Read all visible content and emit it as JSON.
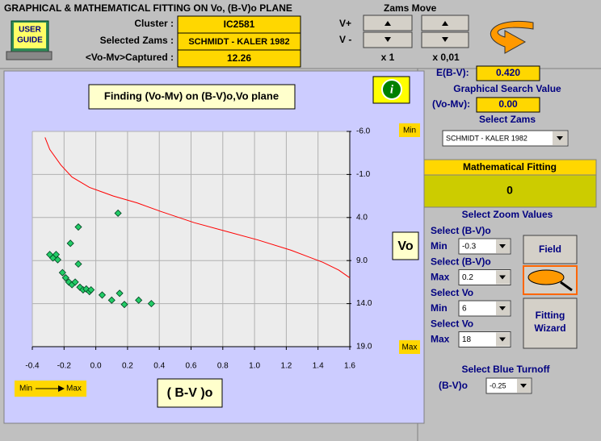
{
  "header": {
    "title": "GRAPHICAL & MATHEMATICAL FITTING ON Vo, (B-V)o PLANE",
    "user_guide": [
      "USER",
      "GUIDE"
    ]
  },
  "info_fields": [
    {
      "label": "Cluster :",
      "value": "IC2581"
    },
    {
      "label": "Selected Zams :",
      "value": "SCHMIDT - KALER 1982"
    },
    {
      "label": "<Vo-Mv>Captured :",
      "value": "12.26"
    }
  ],
  "zams_move": {
    "title": "Zams Move",
    "rows": [
      "V+",
      "V -"
    ],
    "steps": [
      "x 1",
      "x 0,01"
    ]
  },
  "chart_data": {
    "type": "scatter",
    "title": "Finding (Vo-Mv) on (B-V)o,Vo plane",
    "x_label": "( B-V )o",
    "y_label": "Vo",
    "annotations": {
      "y_top": "Min",
      "y_bottom": "Max",
      "x_min": "Min",
      "x_max": "Max"
    },
    "xlim": [
      -0.4,
      1.6
    ],
    "ylim": [
      19,
      -6
    ],
    "xticks": [
      -0.4,
      -0.2,
      {
        "value": 0,
        "label": "0.0"
      },
      0.2,
      0.4,
      0.6,
      0.8,
      {
        "value": 1,
        "label": "1.0"
      },
      1.2,
      1.4,
      1.6
    ],
    "yticks": [
      {
        "value": -6,
        "label": "-6.0"
      },
      {
        "value": -1,
        "label": "-1.0"
      },
      {
        "value": 4,
        "label": "4.0"
      },
      {
        "value": 9,
        "label": "9.0"
      },
      {
        "value": 14,
        "label": "14.0"
      },
      {
        "value": 19,
        "label": "19.0"
      }
    ],
    "grid": true,
    "series": [
      {
        "type": "line",
        "color": "#ff0000",
        "x": [
          -0.32,
          -0.29,
          -0.22,
          -0.15,
          -0.04,
          0.11,
          0.26,
          0.41,
          0.62,
          0.82,
          1.02,
          1.23,
          1.43,
          1.53,
          1.6
        ],
        "values": [
          -5.3,
          -3.9,
          -2.1,
          -0.7,
          0.5,
          1.5,
          2.3,
          3.3,
          4.6,
          5.6,
          6.6,
          7.8,
          9.2,
          10.1,
          11.0
        ]
      },
      {
        "type": "scatter",
        "color": "#22cc66",
        "x": [
          0.14,
          -0.11,
          -0.16,
          -0.29,
          -0.27,
          -0.25,
          -0.24,
          -0.11,
          -0.21,
          -0.19,
          -0.17,
          -0.15,
          -0.13,
          -0.1,
          -0.08,
          -0.06,
          -0.04,
          -0.03,
          0.04,
          0.1,
          0.15,
          0.18,
          0.27,
          0.35
        ],
        "values": [
          3.5,
          5.1,
          7.0,
          8.3,
          8.7,
          8.3,
          8.9,
          9.4,
          10.4,
          11.0,
          11.5,
          11.8,
          11.5,
          12.1,
          12.4,
          12.3,
          12.6,
          12.4,
          13.0,
          13.6,
          12.8,
          14.1,
          13.6,
          14.0
        ]
      }
    ]
  },
  "right_panel": {
    "ebv_label": "E(B-V):",
    "ebv_value": "0.420",
    "graphical_search": "Graphical Search Value",
    "vomv_label": "(Vo-Mv):",
    "vomv_value": "0.00",
    "select_zams": "Select Zams",
    "zams_option": "SCHMIDT - KALER 1982",
    "math_fitting": "Mathematical Fitting",
    "math_fitting_value": "0",
    "zoom_title": "Select Zoom Values",
    "zoom": [
      {
        "label": "Select (B-V)o",
        "bound": "Min",
        "value": "-0.3"
      },
      {
        "label": "Select (B-V)o",
        "bound": "Max",
        "value": "0.2"
      },
      {
        "label": "Select Vo",
        "bound": "Min",
        "value": "6"
      },
      {
        "label": "Select Vo",
        "bound": "Max",
        "value": "18"
      }
    ],
    "buttons": {
      "field": "Field",
      "wizard": [
        "Fitting",
        "Wizard"
      ]
    },
    "blue_turnoff": "Select Blue Turnoff",
    "turnoff_label": "(B-V)o",
    "turnoff_value": "-0.25"
  }
}
